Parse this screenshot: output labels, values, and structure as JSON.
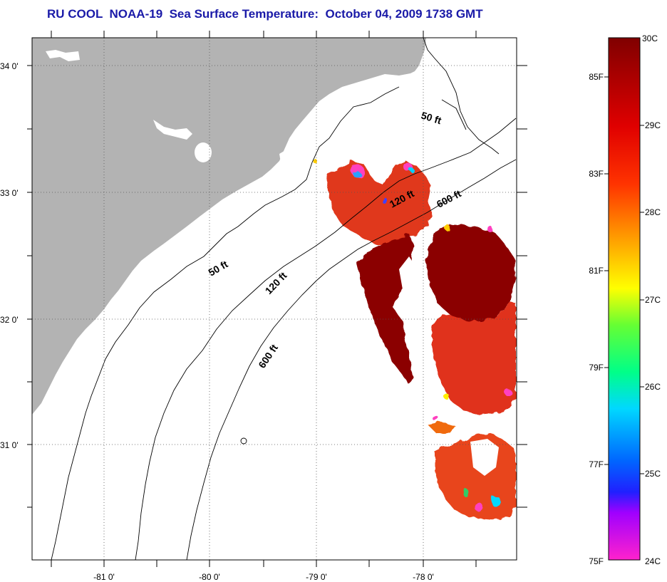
{
  "title": "RU COOL  NOAA-19  Sea Surface Temperature:  October 04, 2009 1738 GMT",
  "lat_labels": [
    "34 0'",
    "33 0'",
    "32 0'",
    "31 0'"
  ],
  "lon_labels": [
    "-81 0'",
    "-80 0'",
    "-79 0'",
    "-78 0'"
  ],
  "contour_labels": [
    "50 ft",
    "120 ft",
    "600 ft",
    "50 ft",
    "120 ft",
    "600 ft"
  ],
  "colorbar": {
    "fahrenheit_labels": [
      "85F",
      "83F",
      "81F",
      "79F",
      "77F",
      "75F"
    ],
    "celsius_labels": [
      "30C",
      "29C",
      "28C",
      "27C",
      "26C",
      "25C",
      "24C"
    ]
  },
  "colors": {
    "land": "#b3b3b3",
    "ocean": "#ffffff",
    "sst_hot": "#8b0000",
    "sst_warm": "#e0301a",
    "sst_orange": "#f06a10",
    "title": "#1a1aa8"
  }
}
